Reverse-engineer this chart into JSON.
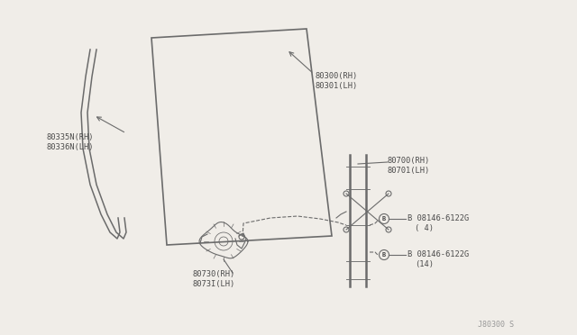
{
  "background_color": "#f0ede8",
  "line_color": "#6b6b6b",
  "text_color": "#4a4a4a",
  "fig_width": 6.4,
  "fig_height": 3.72,
  "dpi": 100,
  "watermark": "J80300 S",
  "labels": {
    "window_run_rh": "80335N(RH)",
    "window_run_lh": "80336N(LH)",
    "glass_rh": "80300(RH)",
    "glass_lh": "80301(LH)",
    "regulator_rh": "80700(RH)",
    "regulator_lh": "80701(LH)",
    "motor_rh": "80730(RH)",
    "motor_lh": "8073I(LH)",
    "bolt1": "B 08146-6122G",
    "bolt1_qty": "( 4)",
    "bolt2": "B 08146-6122G",
    "bolt2_qty": "(14)"
  }
}
